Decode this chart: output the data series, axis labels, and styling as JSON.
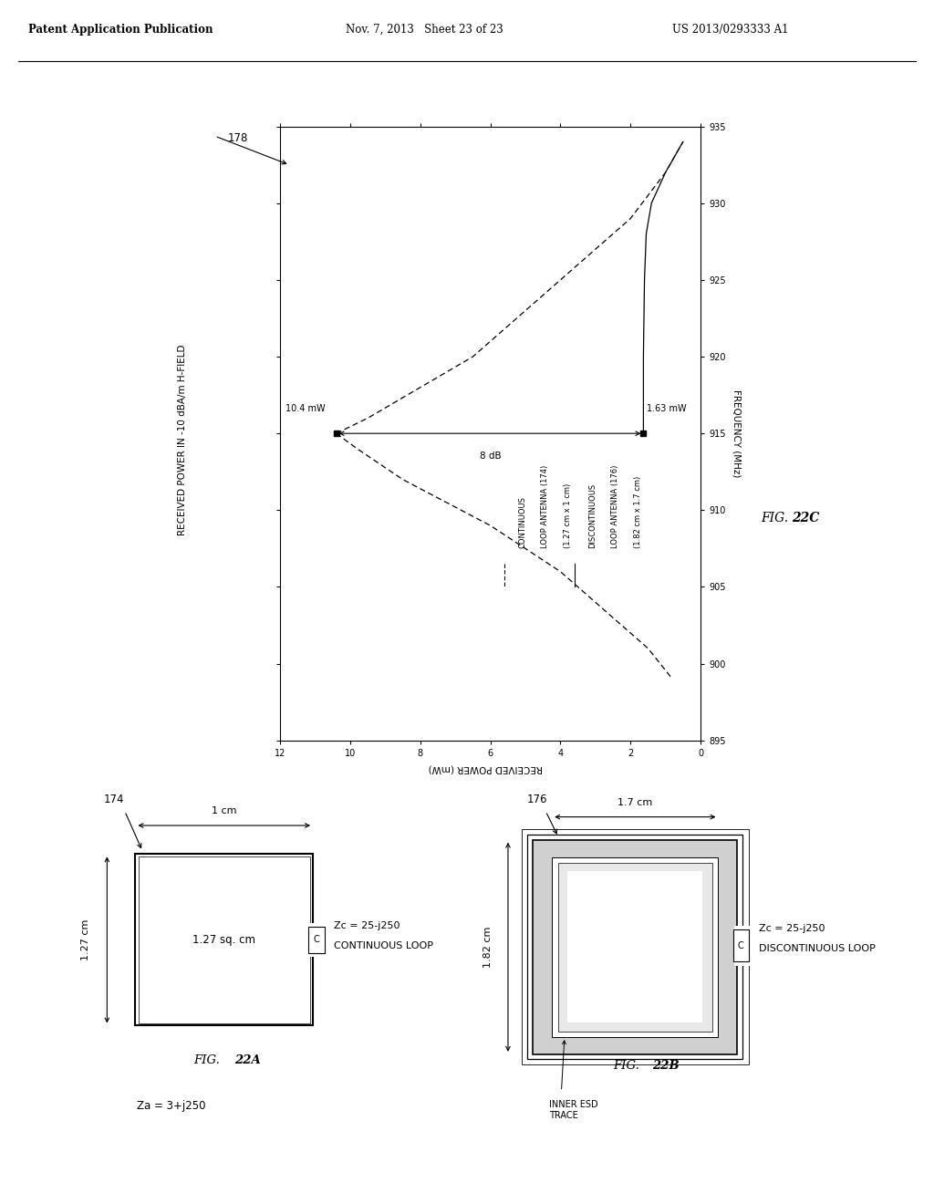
{
  "header_left": "Patent Application Publication",
  "header_mid": "Nov. 7, 2013   Sheet 23 of 23",
  "header_right": "US 2013/0293333 A1",
  "graph_ref": "178",
  "fig22c_label": "FIG. 22C",
  "graph_ylabel": "RECEIVED POWER IN -10 dBA/m H-FIELD",
  "graph_xlabel": "RECEIVED POWER (mW)",
  "graph_freq_label": "FREQUENCY (MHz)",
  "freq_ticks": [
    895,
    900,
    905,
    910,
    915,
    920,
    925,
    930,
    935
  ],
  "power_ticks": [
    0,
    2,
    4,
    6,
    8,
    10,
    12
  ],
  "power_label_high": "10.4 mW",
  "power_label_low": "1.63 mW",
  "db_label": "8 dB",
  "power_high": 10.4,
  "power_low": 1.63,
  "arrow_freq": 915,
  "continuous_legend_line1": "CONTINUOUS",
  "continuous_legend_line2": "LOOP ANTENNA (174)",
  "continuous_legend_line3": "(1.27 cm x 1 cm)",
  "discontinuous_legend_line1": "DISCONTINUOUS",
  "discontinuous_legend_line2": "LOOP ANTENNA (176)",
  "discontinuous_legend_line3": "(1.82 cm x 1.7 cm)",
  "fig22a_ref": "174",
  "fig22b_ref": "176",
  "fig22a_sublabel": "CONTINUOUS LOOP",
  "fig22b_sublabel": "DISCONTINUOUS LOOP",
  "fig22a_width": "1 cm",
  "fig22a_height": "1.27 cm",
  "fig22a_area": "1.27 sq. cm",
  "fig22a_zc": "Zc = 25-j250",
  "fig22a_za": "Za = 3+j250",
  "fig22b_width": "1.7 cm",
  "fig22b_height": "1.82 cm",
  "fig22b_zc": "Zc = 25-j250",
  "inner_esd_label": "INNER ESD\nTRACE",
  "bg_color": "#ffffff",
  "fg_color": "#000000"
}
